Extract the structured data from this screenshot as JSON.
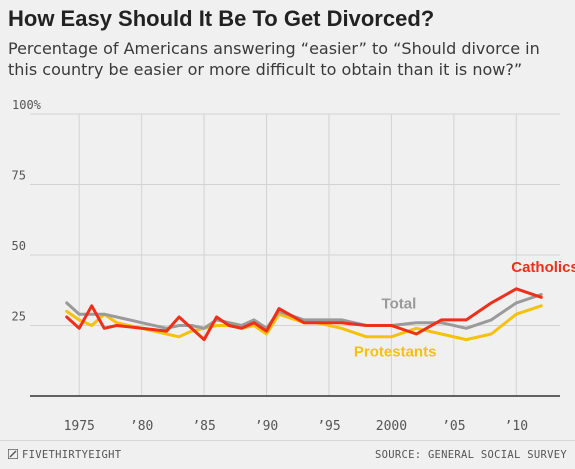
{
  "header": {
    "title": "How Easy Should It Be To Get Divorced?",
    "subtitle": "Percentage of Americans answering “easier” to “Should divorce in this country be easier or more difficult to obtain than it is now?”"
  },
  "footer": {
    "brand": "FIVETHIRTYEIGHT",
    "brand_icon": "fivethirtyeight-logo-icon",
    "source": "SOURCE: GENERAL SOCIAL SURVEY"
  },
  "chart_data": {
    "type": "line",
    "title": "How Easy Should It Be To Get Divorced?",
    "xlim": [
      1972.5,
      2013.5
    ],
    "ylim": [
      0,
      100
    ],
    "x_ticks": [
      1975,
      1980,
      1985,
      1990,
      1995,
      2000,
      2005,
      2010
    ],
    "x_tick_labels": [
      "1975",
      "’80",
      "’85",
      "’90",
      "’95",
      "2000",
      "’05",
      "’10"
    ],
    "y_ticks": [
      0,
      25,
      50,
      75,
      100
    ],
    "y_tick_labels": [
      "",
      "25",
      "50",
      "75",
      "100%"
    ],
    "grid": {
      "horizontal": true,
      "vertical": true
    },
    "legend": "direct labels on lines",
    "series": [
      {
        "name": "Total",
        "color": "#9a9a9a",
        "x": [
          1974,
          1975,
          1976,
          1977,
          1978,
          1980,
          1982,
          1983,
          1984,
          1985,
          1986,
          1987,
          1988,
          1989,
          1990,
          1991,
          1993,
          1994,
          1996,
          1998,
          2000,
          2002,
          2004,
          2006,
          2008,
          2010,
          2012
        ],
        "values": [
          33,
          29,
          29,
          29,
          28,
          26,
          24,
          25,
          25,
          24,
          27,
          26,
          25,
          27,
          24,
          30,
          27,
          27,
          27,
          25,
          25,
          26,
          26,
          24,
          27,
          33,
          36
        ]
      },
      {
        "name": "Catholics",
        "color": "#ee2f19",
        "x": [
          1974,
          1975,
          1976,
          1977,
          1978,
          1980,
          1982,
          1983,
          1984,
          1985,
          1986,
          1987,
          1988,
          1989,
          1990,
          1991,
          1993,
          1994,
          1996,
          1998,
          2000,
          2002,
          2004,
          2006,
          2008,
          2010,
          2012
        ],
        "values": [
          28,
          24,
          32,
          24,
          25,
          24,
          23,
          28,
          24,
          20,
          28,
          25,
          24,
          26,
          23,
          31,
          26,
          26,
          26,
          25,
          25,
          22,
          27,
          27,
          33,
          38,
          35
        ]
      },
      {
        "name": "Protestants",
        "color": "#f4c20d",
        "x": [
          1974,
          1975,
          1976,
          1977,
          1978,
          1980,
          1982,
          1983,
          1984,
          1985,
          1986,
          1987,
          1988,
          1989,
          1990,
          1991,
          1993,
          1994,
          1996,
          1998,
          2000,
          2002,
          2004,
          2006,
          2008,
          2010,
          2012
        ],
        "values": [
          30,
          27,
          25,
          29,
          26,
          24,
          22,
          21,
          23,
          24,
          25,
          25,
          24,
          25,
          22,
          29,
          26,
          26,
          24,
          21,
          21,
          24,
          22,
          20,
          22,
          29,
          32
        ]
      }
    ],
    "labels": [
      {
        "text": "Catholics",
        "series": "Catholics",
        "x": 2012.3,
        "y": 44
      },
      {
        "text": "Total",
        "series": "Total",
        "x": 2000.6,
        "y": 31
      },
      {
        "text": "Protestants",
        "series": "Protestants",
        "x": 2000.3,
        "y": 14
      }
    ]
  }
}
